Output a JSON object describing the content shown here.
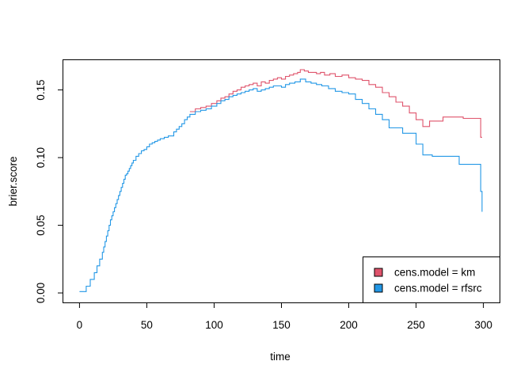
{
  "chart_data": {
    "type": "line",
    "step": true,
    "xlabel": "time",
    "ylabel": "brier.score",
    "xlim": [
      -12,
      312
    ],
    "ylim": [
      -0.007,
      0.172
    ],
    "xticks": [
      0,
      50,
      100,
      150,
      200,
      250,
      300
    ],
    "yticks": [
      0.0,
      0.05,
      0.1,
      0.15
    ],
    "ytick_labels": [
      "0.00",
      "0.05",
      "0.10",
      "0.15"
    ],
    "legend": {
      "placement": "bottom-right",
      "entries": [
        "cens.model = km",
        "cens.model = rfsrc"
      ]
    },
    "series": [
      {
        "name": "cens.model = km",
        "color": "#DF536B",
        "x": [
          82,
          86,
          90,
          94,
          98,
          102,
          105,
          108,
          111,
          114,
          117,
          120,
          123,
          126,
          129,
          132,
          135,
          138,
          141,
          144,
          147,
          150,
          153,
          156,
          159,
          162,
          164,
          167,
          170,
          173,
          176,
          179,
          182,
          186,
          190,
          195,
          200,
          205,
          210,
          215,
          220,
          225,
          230,
          235,
          240,
          245,
          250,
          255,
          260,
          270,
          285,
          298,
          299
        ],
        "y": [
          0.134,
          0.136,
          0.137,
          0.138,
          0.14,
          0.142,
          0.144,
          0.145,
          0.147,
          0.149,
          0.15,
          0.152,
          0.153,
          0.154,
          0.155,
          0.153,
          0.156,
          0.155,
          0.157,
          0.158,
          0.159,
          0.158,
          0.16,
          0.161,
          0.162,
          0.163,
          0.165,
          0.164,
          0.163,
          0.163,
          0.162,
          0.163,
          0.161,
          0.162,
          0.16,
          0.161,
          0.159,
          0.158,
          0.157,
          0.154,
          0.152,
          0.148,
          0.145,
          0.141,
          0.138,
          0.133,
          0.128,
          0.123,
          0.127,
          0.13,
          0.129,
          0.115,
          0.115
        ]
      },
      {
        "name": "cens.model = rfsrc",
        "color": "#2297E6",
        "x": [
          0,
          5,
          8,
          11,
          13,
          15,
          17,
          18,
          19,
          20,
          21,
          22,
          23,
          24,
          25,
          26,
          27,
          28,
          29,
          30,
          31,
          32,
          33,
          34,
          35,
          36,
          37,
          38,
          39,
          40,
          42,
          44,
          46,
          48,
          50,
          52,
          54,
          56,
          58,
          60,
          63,
          66,
          70,
          72,
          74,
          76,
          78,
          80,
          82,
          86,
          90,
          94,
          98,
          102,
          105,
          108,
          111,
          114,
          117,
          120,
          123,
          126,
          129,
          132,
          135,
          138,
          141,
          144,
          147,
          150,
          153,
          156,
          160,
          164,
          168,
          172,
          176,
          180,
          185,
          190,
          195,
          200,
          205,
          210,
          215,
          220,
          225,
          230,
          240,
          250,
          255,
          262,
          282,
          298,
          299
        ],
        "y": [
          0.001,
          0.005,
          0.01,
          0.015,
          0.02,
          0.025,
          0.03,
          0.034,
          0.038,
          0.042,
          0.046,
          0.05,
          0.054,
          0.057,
          0.06,
          0.063,
          0.066,
          0.069,
          0.072,
          0.075,
          0.078,
          0.081,
          0.084,
          0.087,
          0.088,
          0.09,
          0.092,
          0.094,
          0.096,
          0.098,
          0.101,
          0.103,
          0.105,
          0.106,
          0.108,
          0.11,
          0.111,
          0.112,
          0.113,
          0.114,
          0.115,
          0.116,
          0.119,
          0.121,
          0.123,
          0.125,
          0.128,
          0.13,
          0.132,
          0.134,
          0.135,
          0.136,
          0.138,
          0.14,
          0.142,
          0.143,
          0.145,
          0.146,
          0.147,
          0.148,
          0.149,
          0.15,
          0.151,
          0.149,
          0.15,
          0.151,
          0.152,
          0.153,
          0.153,
          0.152,
          0.154,
          0.155,
          0.156,
          0.158,
          0.156,
          0.155,
          0.154,
          0.153,
          0.151,
          0.149,
          0.148,
          0.147,
          0.143,
          0.14,
          0.136,
          0.132,
          0.128,
          0.122,
          0.118,
          0.11,
          0.102,
          0.101,
          0.095,
          0.075,
          0.06
        ]
      }
    ]
  }
}
